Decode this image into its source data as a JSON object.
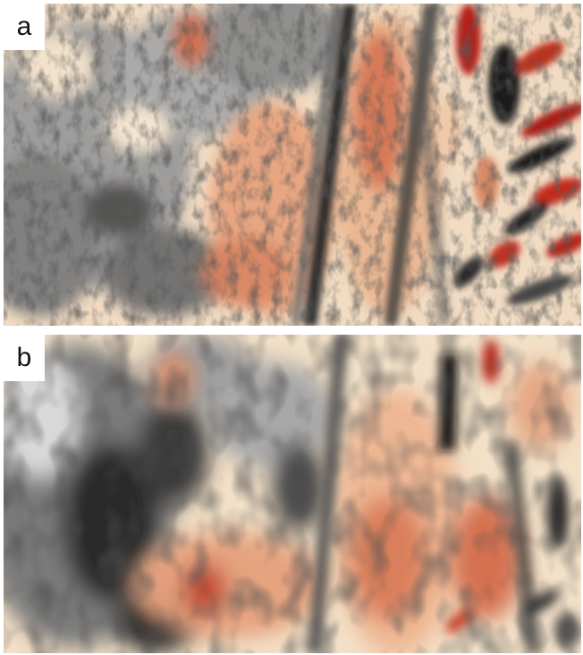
{
  "panels": [
    {
      "label": "a"
    },
    {
      "label": "b"
    }
  ],
  "colors": {
    "background": "#ffffff",
    "dark": "#111111",
    "gray": "#8a8a8a",
    "light": "#f7efe2",
    "cream": "#f3d9b5",
    "orange": "#e39a72",
    "red": "#c83a24"
  }
}
